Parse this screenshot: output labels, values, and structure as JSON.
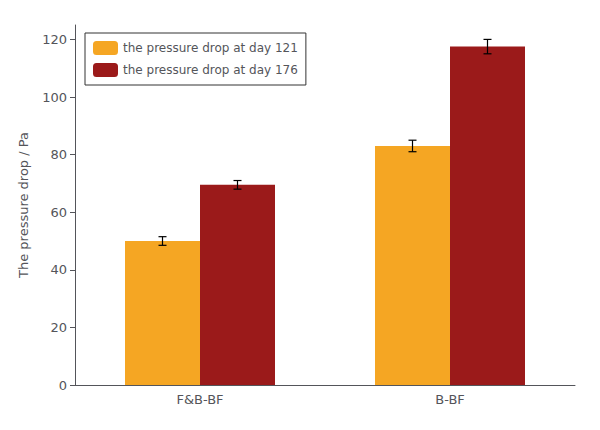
{
  "chart_data": {
    "type": "bar",
    "categories": [
      "F&B-BF",
      "B-BF"
    ],
    "series": [
      {
        "name": "the pressure drop at day 121",
        "color": "#F5A623",
        "values": [
          50,
          83
        ],
        "errors": [
          1.5,
          2.0
        ]
      },
      {
        "name": "the pressure drop at day 176",
        "color": "#9B1A1A",
        "values": [
          69.5,
          117.5
        ],
        "errors": [
          1.5,
          2.5
        ]
      }
    ],
    "ylabel": "The pressure drop / Pa",
    "ylim": [
      0,
      125
    ],
    "yticks": [
      0,
      20,
      40,
      60,
      80,
      100,
      120
    ],
    "grid": false,
    "legend": "upper left"
  }
}
